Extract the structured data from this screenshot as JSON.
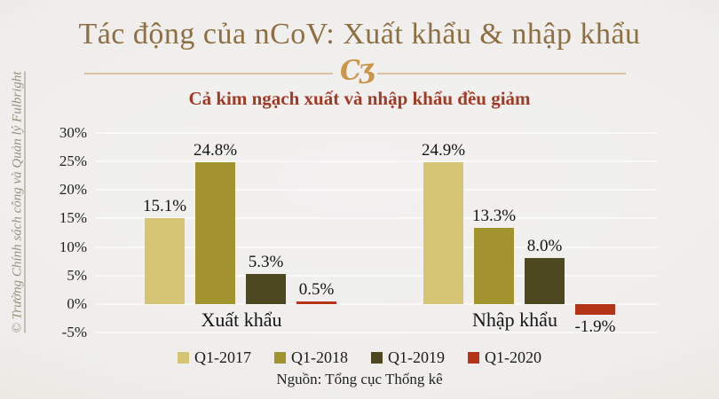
{
  "watermark": {
    "text": "© Trường Chính sách công và Quản lý Fulbright"
  },
  "header": {
    "title": "Tác động của nCoV: Xuất khẩu & nhập khẩu",
    "ornament_glyph": "Cʒ"
  },
  "source": "Nguồn: Tổng cục Thống kê",
  "colors": {
    "background_center": "#f2f1f0",
    "background_edge": "#e4dfd2",
    "title": "#8d6f41",
    "subtitle": "#a23b25",
    "divider_line": "#d8c19c",
    "ornament": "#c9964a",
    "watermark": "#97907c",
    "q1_2017": "#d5c474",
    "q1_2018": "#a3932f",
    "q1_2019": "#4d481f",
    "q1_2020": "#b43418"
  },
  "chart_data": {
    "type": "bar",
    "title": "Cả kim ngạch xuất và nhập khẩu đều giảm",
    "categories": [
      "Xuất khẩu",
      "Nhập khẩu"
    ],
    "series": [
      {
        "name": "Q1-2017",
        "color": "#d5c474",
        "values": [
          15.1,
          24.9
        ],
        "labels": [
          "15.1%",
          "24.9%"
        ]
      },
      {
        "name": "Q1-2018",
        "color": "#a3932f",
        "values": [
          24.8,
          13.3
        ],
        "labels": [
          "24.8%",
          "13.3%"
        ]
      },
      {
        "name": "Q1-2019",
        "color": "#4d481f",
        "values": [
          5.3,
          8.0
        ],
        "labels": [
          "5.3%",
          "8.0%"
        ]
      },
      {
        "name": "Q1-2020",
        "color": "#b43418",
        "values": [
          0.5,
          -1.9
        ],
        "labels": [
          "0.5%",
          "-1.9%"
        ]
      }
    ],
    "y_ticks": [
      {
        "label": "30%",
        "value": 30
      },
      {
        "label": "25%",
        "value": 25
      },
      {
        "label": "20%",
        "value": 20
      },
      {
        "label": "15%",
        "value": 15
      },
      {
        "label": "10%",
        "value": 10
      },
      {
        "label": "5%",
        "value": 5
      },
      {
        "label": "0%",
        "value": 0
      },
      {
        "label": "-5%",
        "value": -5
      }
    ],
    "ylim": [
      -5,
      30
    ],
    "ylabel": "",
    "grid": true,
    "legend_position": "bottom"
  }
}
